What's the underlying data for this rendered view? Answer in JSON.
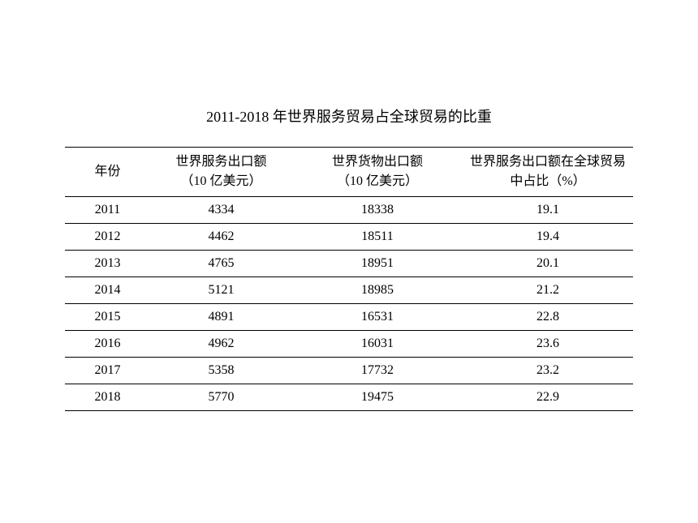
{
  "title": "2011-2018 年世界服务贸易占全球贸易的比重",
  "table": {
    "columns": [
      {
        "label_line1": "年份",
        "label_line2": "",
        "width_class": "col-year"
      },
      {
        "label_line1": "世界服务出口额",
        "label_line2": "（10 亿美元）",
        "width_class": "col-service"
      },
      {
        "label_line1": "世界货物出口额",
        "label_line2": "（10 亿美元）",
        "width_class": "col-goods"
      },
      {
        "label_line1": "世界服务出口额在全球贸易",
        "label_line2": "中占比（%）",
        "width_class": "col-share"
      }
    ],
    "rows": [
      {
        "year": "2011",
        "service": "4334",
        "goods": "18338",
        "share": "19.1"
      },
      {
        "year": "2012",
        "service": "4462",
        "goods": "18511",
        "share": "19.4"
      },
      {
        "year": "2013",
        "service": "4765",
        "goods": "18951",
        "share": "20.1"
      },
      {
        "year": "2014",
        "service": "5121",
        "goods": "18985",
        "share": "21.2"
      },
      {
        "year": "2015",
        "service": "4891",
        "goods": "16531",
        "share": "22.8"
      },
      {
        "year": "2016",
        "service": "4962",
        "goods": "16031",
        "share": "23.6"
      },
      {
        "year": "2017",
        "service": "5358",
        "goods": "17732",
        "share": "23.2"
      },
      {
        "year": "2018",
        "service": "5770",
        "goods": "19475",
        "share": "22.9"
      }
    ],
    "styling": {
      "border_color": "#000000",
      "text_color": "#000000",
      "background_color": "#ffffff",
      "font_size": 16,
      "title_font_size": 18,
      "row_border_width": 1,
      "outer_border_width": 1.5,
      "alignment": "center"
    }
  }
}
